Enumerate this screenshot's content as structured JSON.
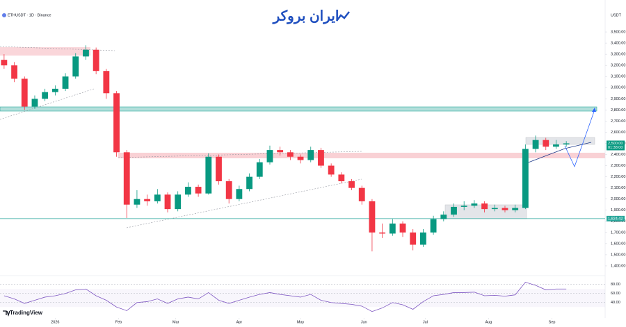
{
  "chart_data": {
    "type": "candlestick",
    "title": "ETHUSDT · 1D · Binance",
    "currency": "USDT",
    "brand": "TradingView",
    "logo": "ایران بروکر",
    "up_color": "#089981",
    "down_color": "#f23645",
    "x": [
      -25,
      -20,
      -15,
      -10,
      -5,
      0,
      5,
      10,
      15,
      20,
      25,
      30,
      35,
      40,
      45,
      50,
      55,
      60,
      65,
      70,
      75,
      80,
      85,
      90,
      95,
      100,
      105,
      110,
      115,
      120,
      125,
      130,
      135,
      140,
      145,
      150,
      155,
      160,
      165,
      170,
      175,
      180,
      185,
      190,
      195,
      200,
      205,
      210,
      215,
      220,
      225,
      230,
      235,
      240,
      245,
      250
    ],
    "candles": [
      [
        3250,
        3300,
        3170,
        3200
      ],
      [
        3200,
        3230,
        3050,
        3080
      ],
      [
        3080,
        3100,
        2800,
        2830
      ],
      [
        2830,
        2930,
        2810,
        2900
      ],
      [
        2900,
        2990,
        2880,
        2960
      ],
      [
        2960,
        3020,
        2930,
        2990
      ],
      [
        2990,
        3130,
        2970,
        3100
      ],
      [
        3100,
        3310,
        3080,
        3280
      ],
      [
        3280,
        3380,
        3250,
        3340
      ],
      [
        3340,
        3360,
        3120,
        3150
      ],
      [
        3150,
        3170,
        2900,
        2950
      ],
      [
        2950,
        2970,
        2380,
        2420
      ],
      [
        2420,
        2440,
        1830,
        1950
      ],
      [
        1950,
        2080,
        1920,
        2000
      ],
      [
        2000,
        2040,
        1940,
        1980
      ],
      [
        1980,
        2090,
        1960,
        2040
      ],
      [
        2040,
        2060,
        1880,
        1910
      ],
      [
        1910,
        2070,
        1890,
        2040
      ],
      [
        2040,
        2150,
        2020,
        2110
      ],
      [
        2110,
        2130,
        2020,
        2050
      ],
      [
        2050,
        2410,
        2040,
        2380
      ],
      [
        2380,
        2400,
        2130,
        2160
      ],
      [
        2160,
        2180,
        1960,
        2000
      ],
      [
        2000,
        2120,
        1980,
        2090
      ],
      [
        2090,
        2230,
        2070,
        2200
      ],
      [
        2200,
        2360,
        2180,
        2330
      ],
      [
        2330,
        2480,
        2310,
        2440
      ],
      [
        2440,
        2470,
        2390,
        2420
      ],
      [
        2420,
        2440,
        2350,
        2380
      ],
      [
        2380,
        2400,
        2320,
        2350
      ],
      [
        2350,
        2470,
        2330,
        2440
      ],
      [
        2440,
        2460,
        2280,
        2300
      ],
      [
        2300,
        2320,
        2200,
        2220
      ],
      [
        2220,
        2240,
        2140,
        2160
      ],
      [
        2160,
        2180,
        2080,
        2100
      ],
      [
        2100,
        2120,
        1950,
        1980
      ],
      [
        1980,
        2000,
        1530,
        1700
      ],
      [
        1700,
        1780,
        1650,
        1690
      ],
      [
        1690,
        1820,
        1670,
        1780
      ],
      [
        1780,
        1800,
        1660,
        1700
      ],
      [
        1700,
        1730,
        1540,
        1590
      ],
      [
        1590,
        1730,
        1570,
        1700
      ],
      [
        1700,
        1850,
        1680,
        1820
      ],
      [
        1820,
        1890,
        1800,
        1860
      ],
      [
        1860,
        1960,
        1840,
        1930
      ],
      [
        1930,
        1980,
        1900,
        1940
      ],
      [
        1940,
        1990,
        1920,
        1960
      ],
      [
        1960,
        1980,
        1880,
        1910
      ],
      [
        1910,
        1950,
        1890,
        1920
      ],
      [
        1920,
        1940,
        1880,
        1900
      ],
      [
        1900,
        1950,
        1880,
        1920
      ],
      [
        1920,
        2490,
        1910,
        2450
      ],
      [
        2450,
        2570,
        2420,
        2530
      ],
      [
        2530,
        2550,
        2440,
        2470
      ],
      [
        2470,
        2530,
        2450,
        2490
      ],
      [
        2490,
        2520,
        2470,
        2500
      ]
    ],
    "xlim": [
      -27,
      269
    ],
    "xticks": [
      {
        "value": 0,
        "label": "2026"
      },
      {
        "value": 31,
        "label": "Feb"
      },
      {
        "value": 59,
        "label": "Mar"
      },
      {
        "value": 90,
        "label": "Apr"
      },
      {
        "value": 120,
        "label": "May"
      },
      {
        "value": 151,
        "label": "Jun"
      },
      {
        "value": 181,
        "label": "Jul"
      },
      {
        "value": 212,
        "label": "Aug"
      },
      {
        "value": 243,
        "label": "Sep"
      }
    ],
    "ylim": [
      1325,
      3600
    ],
    "yticks": [
      {
        "value": 3500,
        "label": "3,500.00"
      },
      {
        "value": 3400,
        "label": "3,400.00"
      },
      {
        "value": 3300,
        "label": "3,300.00"
      },
      {
        "value": 3200,
        "label": "3,200.00"
      },
      {
        "value": 3100,
        "label": "3,100.00"
      },
      {
        "value": 3000,
        "label": "3,000.00"
      },
      {
        "value": 2900,
        "label": "2,900.00"
      },
      {
        "value": 2800,
        "label": "2,800.00"
      },
      {
        "value": 2700,
        "label": "2,700.00"
      },
      {
        "value": 2600,
        "label": "2,600.00"
      },
      {
        "value": 2500,
        "label": "2,500.00"
      },
      {
        "value": 2400,
        "label": "2,400.00"
      },
      {
        "value": 2300,
        "label": "2,300.00"
      },
      {
        "value": 2200,
        "label": "2,200.00"
      },
      {
        "value": 2100,
        "label": "2,100.00"
      },
      {
        "value": 2000,
        "label": "2,000.00"
      },
      {
        "value": 1900,
        "label": "1,900.00"
      },
      {
        "value": 1800,
        "label": "1,800.00"
      },
      {
        "value": 1700,
        "label": "1,700.00"
      },
      {
        "value": 1600,
        "label": "1,600.00"
      },
      {
        "value": 1500,
        "label": "1,500.00"
      },
      {
        "value": 1400,
        "label": "1,400.00"
      }
    ],
    "price_line": {
      "value": 1824.42,
      "label": "1,824.42",
      "color": "#26a69a"
    },
    "last_price": {
      "value": 2500,
      "label": "2,500.00"
    },
    "countdown": "01:38:00",
    "rsi": {
      "values": [
        55,
        48,
        38,
        45,
        52,
        55,
        60,
        68,
        70,
        55,
        45,
        30,
        22,
        40,
        42,
        48,
        38,
        48,
        52,
        48,
        62,
        45,
        38,
        45,
        52,
        58,
        62,
        58,
        55,
        52,
        58,
        45,
        40,
        38,
        36,
        32,
        20,
        28,
        40,
        35,
        25,
        42,
        55,
        58,
        62,
        62,
        63,
        55,
        56,
        54,
        57,
        85,
        78,
        68,
        70,
        70
      ],
      "color": "#7e57c2",
      "ylim": [
        15,
        95
      ],
      "yticks": [
        {
          "value": 80,
          "label": "80.00"
        },
        {
          "value": 60,
          "label": "60.00"
        },
        {
          "value": 40,
          "label": "40.00"
        }
      ]
    }
  }
}
